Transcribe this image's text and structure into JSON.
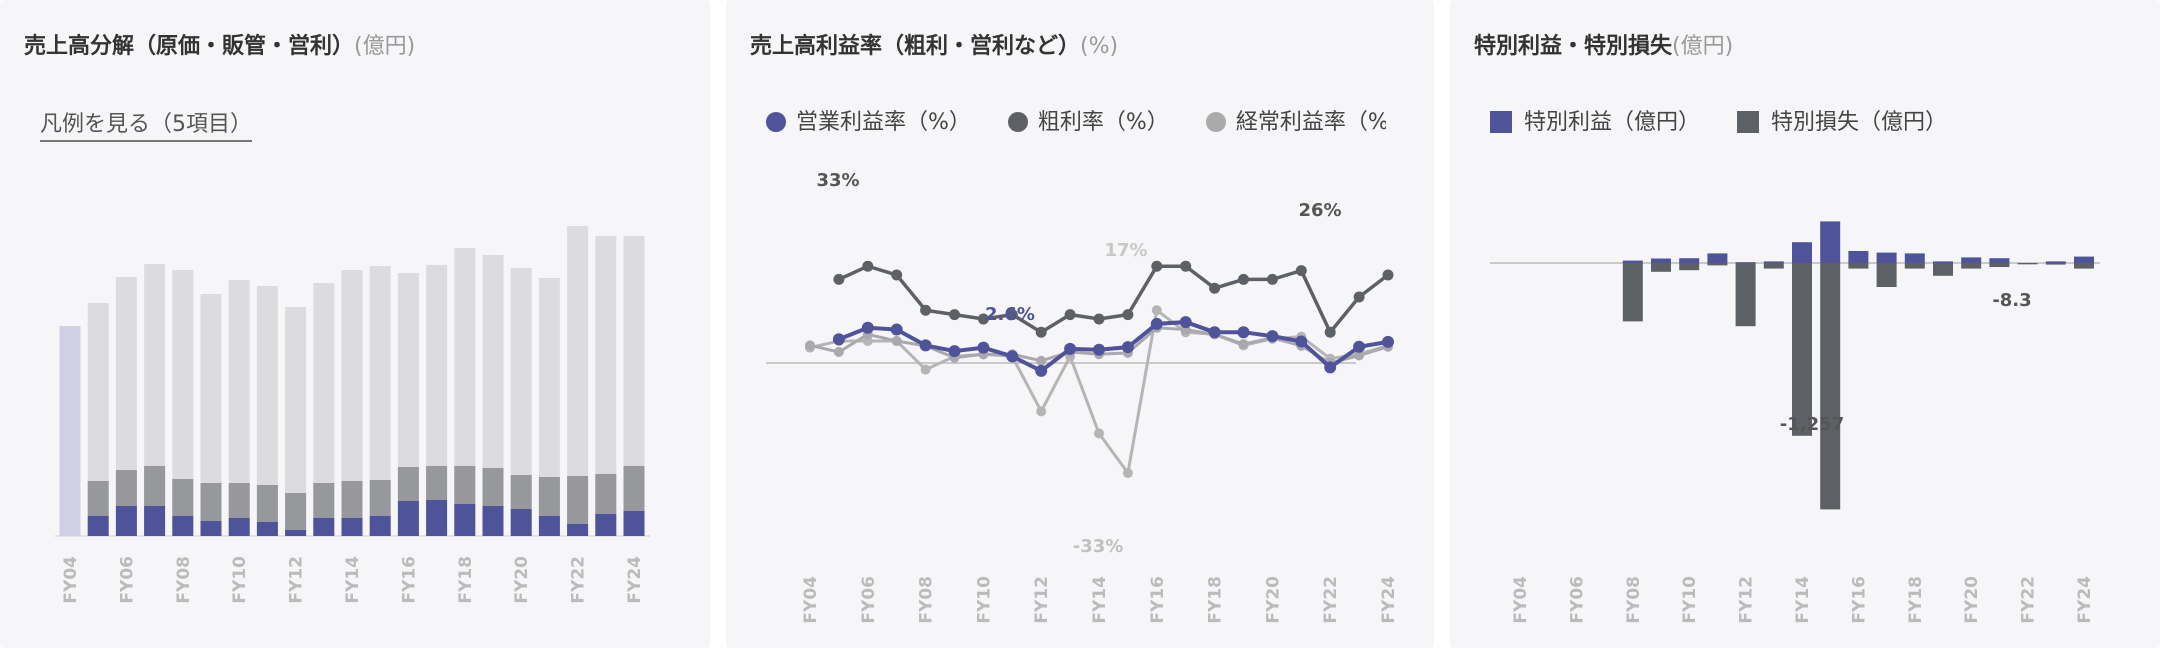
{
  "panels": [
    {
      "title": "売上高分解（原価・販管・営利）",
      "unit": "(億円)",
      "legend_link": "凡例を見る（5項目）"
    },
    {
      "title": "売上高利益率（粗利・営利など）",
      "unit": "(%)"
    },
    {
      "title": "特別利益・特別損失",
      "unit": "(億円)"
    }
  ],
  "colors": {
    "navy": "#4f5399",
    "dark": "#5d6166",
    "mid": "#96989c",
    "light": "#dcdcde",
    "pale": "#cfd1e3",
    "gray_line": "#b5b5b5"
  },
  "chart_data": [
    {
      "type": "bar",
      "stacked": true,
      "categories": [
        "FY04",
        "FY05",
        "FY06",
        "FY07",
        "FY08",
        "FY09",
        "FY10",
        "FY11",
        "FY12",
        "FY13",
        "FY14",
        "FY15",
        "FY16",
        "FY17",
        "FY18",
        "FY19",
        "FY20",
        "FY21",
        "FY22",
        "FY23",
        "FY24"
      ],
      "tick_labels": [
        "FY04",
        "FY06",
        "FY08",
        "FY10",
        "FY12",
        "FY14",
        "FY16",
        "FY18",
        "FY20",
        "FY22",
        "FY24"
      ],
      "series_values": {
        "total": [
          210,
          233,
          259,
          272,
          266,
          242,
          256,
          250,
          229,
          253,
          266,
          270,
          263,
          271,
          288,
          281,
          268,
          258,
          310,
          300,
          300
        ],
        "seg1": [
          0,
          20,
          30,
          30,
          20,
          15,
          18,
          14,
          6,
          18,
          18,
          20,
          35,
          36,
          32,
          30,
          27,
          20,
          12,
          22,
          25
        ],
        "seg2": [
          0,
          35,
          36,
          40,
          37,
          38,
          35,
          37,
          37,
          35,
          37,
          36,
          34,
          34,
          38,
          38,
          34,
          39,
          48,
          40,
          45
        ]
      },
      "first_total_only": true
    },
    {
      "type": "line",
      "categories": [
        "FY04",
        "FY05",
        "FY06",
        "FY07",
        "FY08",
        "FY09",
        "FY10",
        "FY11",
        "FY12",
        "FY13",
        "FY14",
        "FY15",
        "FY16",
        "FY17",
        "FY18",
        "FY19",
        "FY20",
        "FY21",
        "FY22",
        "FY23",
        "FY24"
      ],
      "tick_labels": [
        "FY04",
        "FY06",
        "FY08",
        "FY10",
        "FY12",
        "FY14",
        "FY16",
        "FY18",
        "FY20",
        "FY22",
        "FY24"
      ],
      "series": [
        {
          "name": "営業利益率（%）",
          "values": [
            null,
            5.4,
            8,
            7.6,
            4,
            2.7,
            3.5,
            1.5,
            -1.8,
            3.2,
            3,
            3.6,
            8.9,
            9.3,
            7,
            7,
            6.1,
            4.9,
            -1,
            3.7,
            4.8
          ]
        },
        {
          "name": "粗利率（%）",
          "values": [
            null,
            19,
            22,
            20,
            12,
            11,
            10,
            11,
            7,
            11,
            10,
            11,
            22,
            22,
            17,
            19,
            19,
            21,
            7,
            15,
            20
          ]
        },
        {
          "name": "経常利益率（%）",
          "values": [
            4,
            2.5,
            6.5,
            5,
            3.9,
            1.2,
            2,
            2,
            0.5,
            2.5,
            2,
            2.3,
            8,
            7.6,
            6.5,
            4.3,
            5.7,
            3.9,
            0,
            1.7,
            3.7
          ]
        }
      ],
      "series_third_values": [
        3.5,
        5,
        5,
        5,
        -1.5,
        1.5,
        2,
        1.5,
        -11,
        1.5,
        -16,
        -25,
        12,
        7,
        6.5,
        4,
        5.5,
        6,
        1,
        2,
        4
      ],
      "annotations": [
        "33%",
        "2.6%",
        "26%",
        "17%",
        "-33%"
      ],
      "ylim": [
        -40,
        40
      ]
    },
    {
      "type": "bar",
      "categories": [
        "FY04",
        "FY05",
        "FY06",
        "FY07",
        "FY08",
        "FY09",
        "FY10",
        "FY11",
        "FY12",
        "FY13",
        "FY14",
        "FY15",
        "FY16",
        "FY17",
        "FY18",
        "FY19",
        "FY20",
        "FY21",
        "FY22",
        "FY23",
        "FY24"
      ],
      "tick_labels": [
        "FY04",
        "FY06",
        "FY08",
        "FY10",
        "FY12",
        "FY14",
        "FY16",
        "FY18",
        "FY20",
        "FY22",
        "FY24"
      ],
      "tick_faded": [
        "FY04",
        "FY06"
      ],
      "series": [
        {
          "name": "特別利益（億円）",
          "values": [
            0,
            0,
            0,
            0,
            15,
            28,
            30,
            60,
            5,
            10,
            130,
            260,
            75,
            65,
            60,
            10,
            35,
            30,
            0,
            10,
            40
          ]
        },
        {
          "name": "特別損失（億円）",
          "values": [
            0,
            0,
            0,
            0,
            -365,
            -55,
            -45,
            -15,
            -395,
            -35,
            -1080,
            -1540,
            -35,
            -150,
            -35,
            -80,
            -35,
            -25,
            -8.3,
            -10,
            -35
          ]
        }
      ],
      "annotations": [
        "-1,257",
        "-8.3"
      ]
    }
  ]
}
